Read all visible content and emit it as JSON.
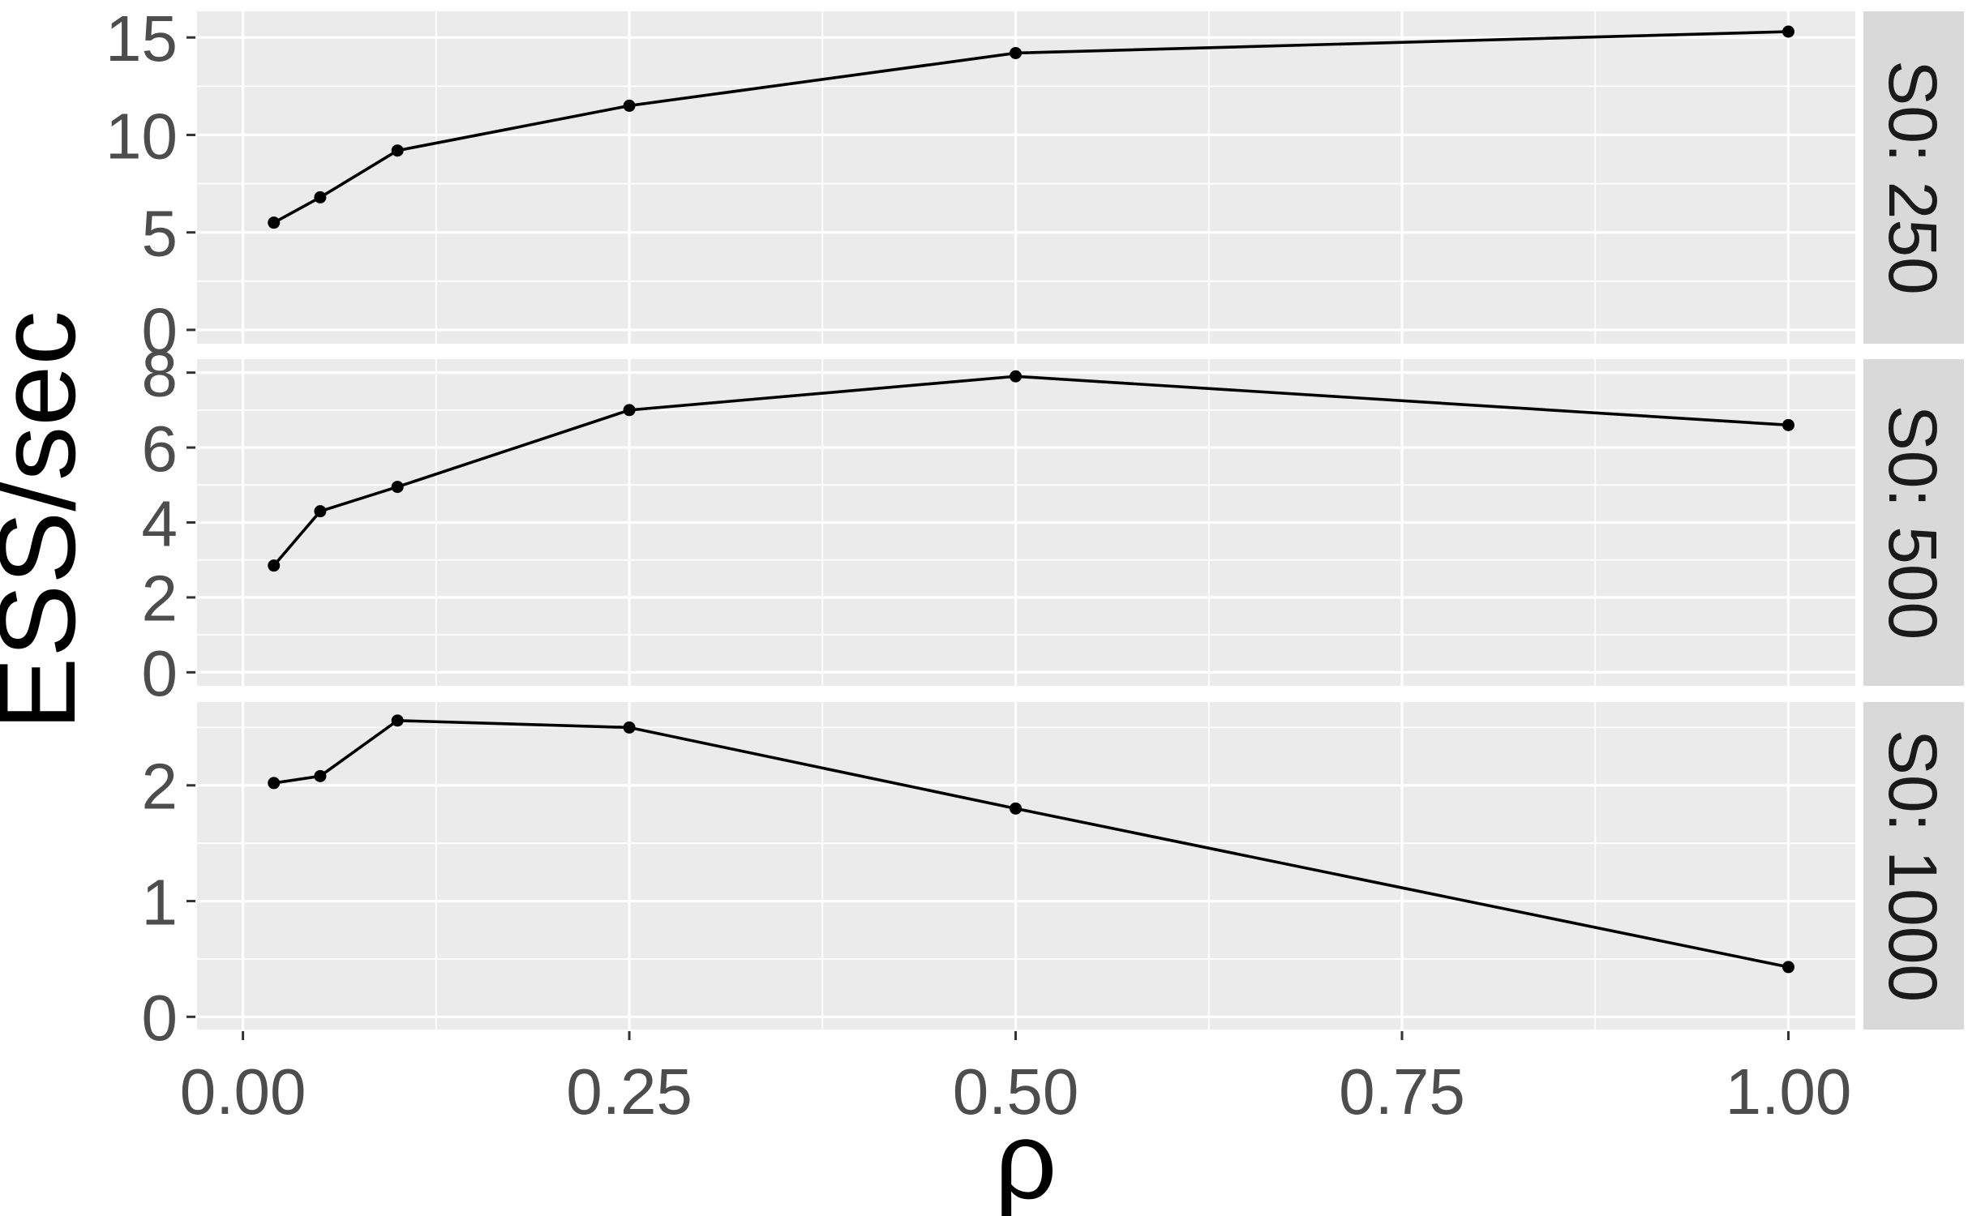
{
  "chart_data": {
    "type": "line",
    "title": "",
    "xlabel": "ρ",
    "ylabel": "ESS/sec",
    "legend_position": "none",
    "grid": true,
    "facet_side": "right",
    "x": [
      0.02,
      0.05,
      0.1,
      0.25,
      0.5,
      1.0
    ],
    "x_domain": [
      -0.0297,
      1.0433
    ],
    "x_ticks": {
      "values": [
        0.0,
        0.25,
        0.5,
        0.75,
        1.0
      ],
      "labels": [
        "0.00",
        "0.25",
        "0.50",
        "0.75",
        "1.00"
      ]
    },
    "x_minor": [
      0.125,
      0.375,
      0.625,
      0.875
    ],
    "facets": [
      {
        "label": "S0: 250",
        "values": [
          5.5,
          6.8,
          9.2,
          11.5,
          14.2,
          15.3
        ],
        "y_domain": [
          -0.71,
          16.34
        ],
        "y_ticks": {
          "values": [
            0,
            5,
            10,
            15
          ],
          "labels": [
            "0",
            "5",
            "10",
            "15"
          ]
        },
        "y_minor": [
          2.5,
          7.5,
          12.5
        ]
      },
      {
        "label": "S0: 500",
        "values": [
          2.85,
          4.3,
          4.95,
          7.0,
          7.9,
          6.6
        ],
        "y_domain": [
          -0.36,
          8.36
        ],
        "y_ticks": {
          "values": [
            0,
            2,
            4,
            6,
            8
          ],
          "labels": [
            "0",
            "2",
            "4",
            "6",
            "8"
          ]
        },
        "y_minor": [
          1,
          3,
          5,
          7
        ]
      },
      {
        "label": "S0: 1000",
        "values": [
          2.02,
          2.08,
          2.56,
          2.5,
          1.8,
          0.43
        ],
        "y_domain": [
          -0.11,
          2.72
        ],
        "y_ticks": {
          "values": [
            0,
            1,
            2
          ],
          "labels": [
            "0",
            "1",
            "2"
          ]
        },
        "y_minor": [
          0.5,
          1.5,
          2.5
        ]
      }
    ],
    "style": {
      "panel_bg": "#EBEBEB",
      "strip_bg": "#D9D9D9",
      "grid_color": "#FFFFFF",
      "line_color": "#000000",
      "point_color": "#000000",
      "tick_mark_color": "#333333",
      "tick_label_color": "#4D4D4D",
      "strip_text_color": "#1A1A1A",
      "axis_title_color": "#000000"
    }
  }
}
